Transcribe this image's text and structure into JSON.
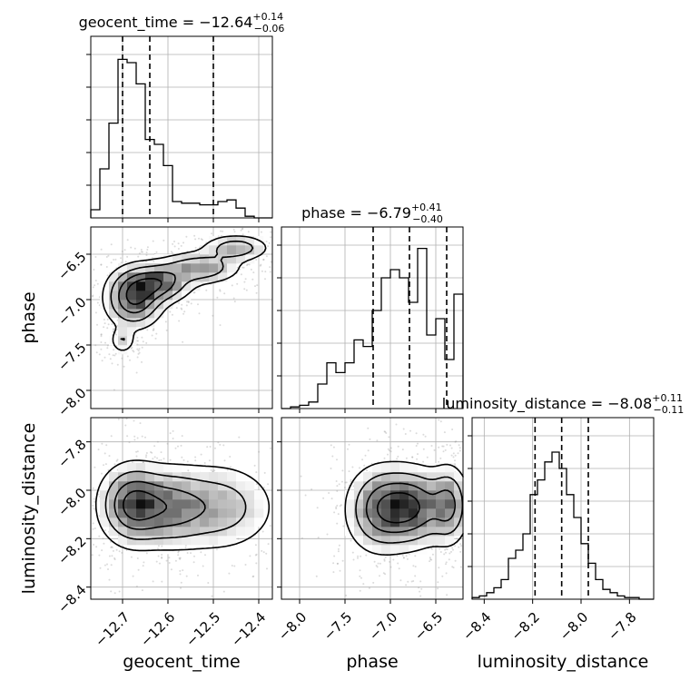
{
  "chart_data": {
    "type": "corner",
    "parameters": [
      "geocent_time",
      "phase",
      "luminosity_distance"
    ],
    "titles": [
      {
        "param": "geocent_time",
        "prefix": "geocent_time = ",
        "median": "−12.64",
        "plus": "+0.14",
        "minus": "−0.06"
      },
      {
        "param": "phase",
        "prefix": "phase = ",
        "median": "−6.79",
        "plus": "+0.41",
        "minus": "−0.40"
      },
      {
        "param": "luminosity_distance",
        "prefix": "luminosity_distance = ",
        "median": "−8.08",
        "plus": "+0.11",
        "minus": "−0.11"
      }
    ],
    "axes": [
      {
        "param": "geocent_time",
        "range": [
          -12.77,
          -12.37
        ],
        "ticks": [
          -12.7,
          -12.6,
          -12.5,
          -12.4
        ],
        "tick_labels": [
          "−12.7",
          "−12.6",
          "−12.5",
          "−12.4"
        ],
        "xlabel": "geocent_time"
      },
      {
        "param": "phase",
        "range": [
          -8.2,
          -6.2
        ],
        "ticks": [
          -8.0,
          -7.5,
          -7.0,
          -6.5
        ],
        "tick_labels": [
          "−8.0",
          "−7.5",
          "−7.0",
          "−6.5"
        ],
        "xlabel": "phase",
        "ylabel": "phase"
      },
      {
        "param": "luminosity_distance",
        "range": [
          -8.45,
          -7.7
        ],
        "ticks": [
          -8.4,
          -8.2,
          -8.0,
          -7.8
        ],
        "tick_labels": [
          "−8.4",
          "−8.2",
          "−8.0",
          "−7.8"
        ],
        "xlabel": "luminosity_distance",
        "ylabel": "luminosity_distance"
      }
    ],
    "quantiles": {
      "geocent_time": [
        -12.7,
        -12.64,
        -12.5
      ],
      "phase": [
        -7.19,
        -6.79,
        -6.38
      ],
      "luminosity_distance": [
        -8.19,
        -8.08,
        -7.97
      ]
    },
    "histograms": {
      "geocent_time": {
        "edges_range": [
          -12.77,
          -12.37
        ],
        "bins": 20,
        "counts": [
          0.05,
          0.3,
          0.58,
          0.97,
          0.95,
          0.82,
          0.48,
          0.45,
          0.32,
          0.1,
          0.09,
          0.09,
          0.08,
          0.08,
          0.1,
          0.11,
          0.06,
          0.01,
          0.0,
          0.0
        ]
      },
      "phase": {
        "edges_range": [
          -8.2,
          -6.2
        ],
        "bins": 20,
        "counts": [
          0.0,
          0.01,
          0.02,
          0.04,
          0.15,
          0.28,
          0.22,
          0.28,
          0.42,
          0.38,
          0.6,
          0.8,
          0.85,
          0.8,
          0.65,
          0.98,
          0.45,
          0.55,
          0.3,
          0.7
        ]
      },
      "luminosity_distance": {
        "edges_range": [
          -8.45,
          -7.7
        ],
        "bins": 25,
        "counts": [
          0.01,
          0.02,
          0.04,
          0.07,
          0.12,
          0.25,
          0.3,
          0.4,
          0.64,
          0.73,
          0.84,
          0.9,
          0.8,
          0.64,
          0.5,
          0.34,
          0.22,
          0.12,
          0.06,
          0.04,
          0.02,
          0.01,
          0.01,
          0.0,
          0.0
        ]
      }
    },
    "density_blobs": {
      "phase_vs_geocent_time": [
        {
          "x": -12.675,
          "y": -6.98,
          "sx": 0.035,
          "sy": 0.18,
          "w": 1.0
        },
        {
          "x": -12.62,
          "y": -6.82,
          "sx": 0.04,
          "sy": 0.12,
          "w": 0.8
        },
        {
          "x": -12.53,
          "y": -6.65,
          "sx": 0.05,
          "sy": 0.1,
          "w": 0.6
        },
        {
          "x": -12.45,
          "y": -6.43,
          "sx": 0.04,
          "sy": 0.08,
          "w": 0.55
        },
        {
          "x": -12.7,
          "y": -7.45,
          "sx": 0.015,
          "sy": 0.08,
          "w": 0.35
        }
      ],
      "luminosity_distance_vs_geocent_time": [
        {
          "x": -12.68,
          "y": -8.06,
          "sx": 0.04,
          "sy": 0.09,
          "w": 1.0
        },
        {
          "x": -12.6,
          "y": -8.07,
          "sx": 0.05,
          "sy": 0.09,
          "w": 0.7
        },
        {
          "x": -12.49,
          "y": -8.07,
          "sx": 0.07,
          "sy": 0.1,
          "w": 0.55
        }
      ],
      "luminosity_distance_vs_phase": [
        {
          "x": -6.8,
          "y": -8.07,
          "sx": 0.25,
          "sy": 0.09,
          "w": 1.0
        },
        {
          "x": -7.15,
          "y": -8.08,
          "sx": 0.2,
          "sy": 0.1,
          "w": 0.55
        },
        {
          "x": -6.35,
          "y": -8.06,
          "sx": 0.12,
          "sy": 0.09,
          "w": 0.6
        }
      ]
    },
    "grid": true
  }
}
